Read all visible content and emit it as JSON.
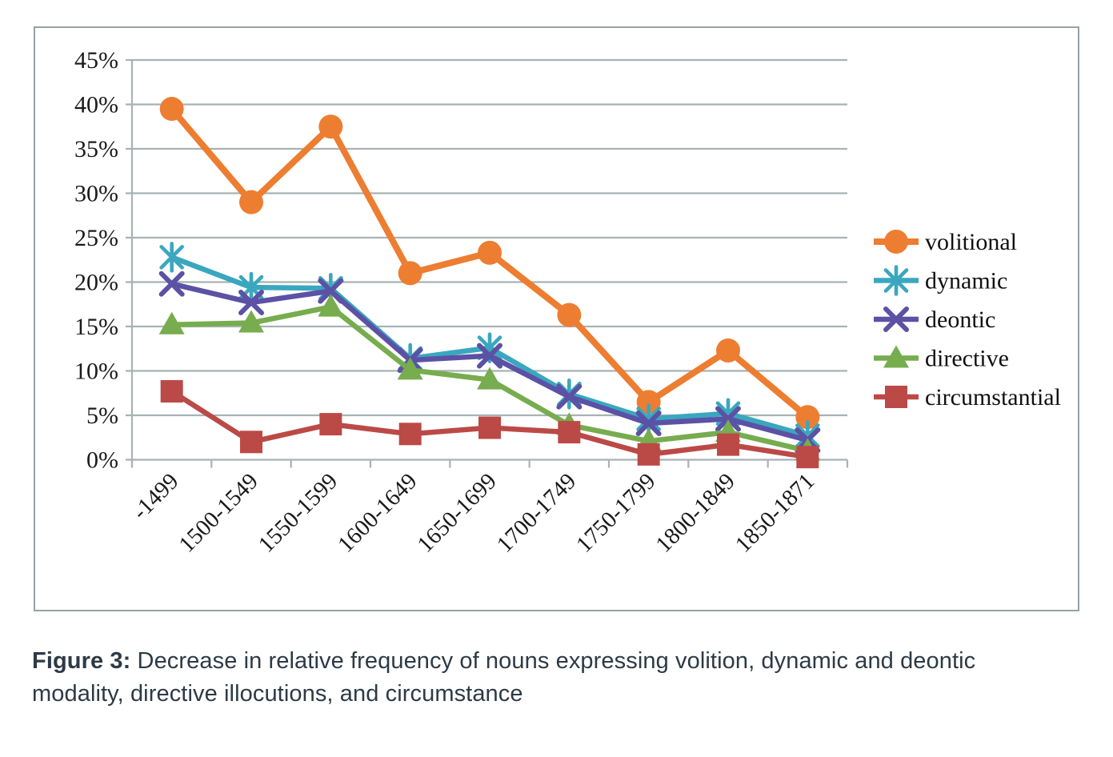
{
  "figure": {
    "caption": {
      "label": "Figure 3:",
      "line1": "Decrease in relative frequency of nouns expressing volition, dynamic and deontic",
      "line2": "modality, directive illocutions, and circumstance"
    }
  },
  "colors": {
    "background": "#FFFFFF",
    "frame_border": "#97A1A6",
    "gridline": "#A8B2B4",
    "axis": "#A8B2B4",
    "tick_label": "#1A1A1A",
    "legend_text": "#111111",
    "caption_text": "#2D3A46"
  },
  "chart_data": {
    "type": "line",
    "title": "",
    "xlabel": "",
    "ylabel": "",
    "categories": [
      "-1499",
      "1500-1549",
      "1550-1599",
      "1600-1649",
      "1650-1699",
      "1700-1749",
      "1750-1799",
      "1800-1849",
      "1850-1871"
    ],
    "series": [
      {
        "name": "volitional",
        "color": "#ED7D31",
        "marker": "circle",
        "values": [
          39.5,
          29.0,
          37.5,
          21.0,
          23.3,
          16.3,
          6.5,
          12.3,
          4.8
        ]
      },
      {
        "name": "dynamic",
        "color": "#3AA7BF",
        "marker": "asterisk",
        "values": [
          22.8,
          19.4,
          19.3,
          11.4,
          12.6,
          7.4,
          4.6,
          5.2,
          2.7
        ]
      },
      {
        "name": "deontic",
        "color": "#5B52A5",
        "marker": "x",
        "values": [
          19.8,
          17.7,
          19.0,
          11.2,
          11.7,
          7.1,
          4.1,
          4.6,
          2.2
        ]
      },
      {
        "name": "directive",
        "color": "#77AC4F",
        "marker": "triangle",
        "values": [
          15.2,
          15.4,
          17.2,
          10.1,
          9.0,
          3.9,
          2.1,
          3.1,
          1.0
        ]
      },
      {
        "name": "circumstantial",
        "color": "#BB4A47",
        "marker": "square",
        "values": [
          7.7,
          2.0,
          4.0,
          2.9,
          3.6,
          3.1,
          0.6,
          1.7,
          0.3
        ]
      }
    ],
    "ylim": [
      0,
      45
    ],
    "y_tick_step": 5,
    "y_tick_labels": [
      "0%",
      "5%",
      "10%",
      "15%",
      "20%",
      "25%",
      "30%",
      "35%",
      "40%",
      "45%"
    ],
    "grid": "horizontal",
    "legend_position": "right",
    "legend_labels": [
      "volitional",
      "dynamic",
      "deontic",
      "directive",
      "circumstantial"
    ]
  }
}
